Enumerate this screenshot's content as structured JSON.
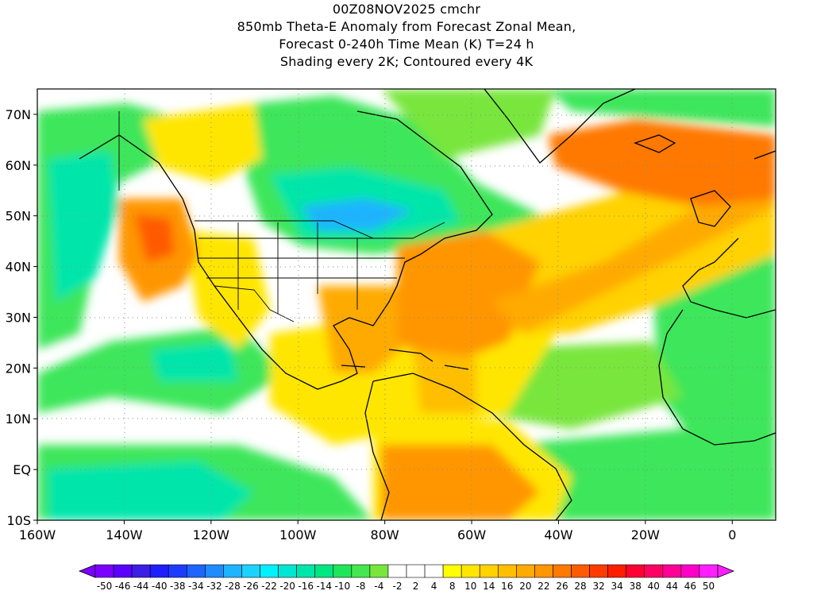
{
  "title": {
    "line1": "00Z08NOV2025 cmchr",
    "line2": "850mb Theta-E Anomaly from Forecast Zonal Mean,",
    "line3": "Forecast 0-240h Time Mean (K) T=24 h",
    "line4": "Shading every 2K; Contoured every 4K"
  },
  "axes": {
    "lat_labels": [
      "70N",
      "60N",
      "50N",
      "40N",
      "30N",
      "20N",
      "10N",
      "EQ",
      "10S"
    ],
    "lon_labels": [
      "160W",
      "140W",
      "120W",
      "100W",
      "80W",
      "60W",
      "40W",
      "20W",
      "0"
    ],
    "lon_range": [
      -160,
      10
    ],
    "lat_range": [
      -10,
      75
    ]
  },
  "colorbar": {
    "labels": [
      "-50",
      "-46",
      "-44",
      "-40",
      "-38",
      "-34",
      "-32",
      "-28",
      "-26",
      "-22",
      "-20",
      "-16",
      "-14",
      "-10",
      "-8",
      "-4",
      "-2",
      "2",
      "4",
      "8",
      "10",
      "14",
      "16",
      "20",
      "22",
      "26",
      "28",
      "32",
      "34",
      "38",
      "40",
      "44",
      "46",
      "50"
    ],
    "colors": [
      "#7b00ff",
      "#5a00ff",
      "#3c1ee6",
      "#1e1eff",
      "#1e3cff",
      "#1e64ff",
      "#1e8cff",
      "#1eb4ff",
      "#1ed2ff",
      "#00f0ff",
      "#00e6d2",
      "#00e6aa",
      "#00e682",
      "#1ee65a",
      "#46e650",
      "#78e63c",
      "#ffffff",
      "#ffffff",
      "#ffffff",
      "#ffff00",
      "#ffe600",
      "#ffd200",
      "#ffbe00",
      "#ffaa00",
      "#ff9600",
      "#ff7800",
      "#ff5a00",
      "#ff3c00",
      "#ff1e00",
      "#ff0032",
      "#ff0064",
      "#ff0096",
      "#ff00c8",
      "#ff1eff"
    ]
  }
}
